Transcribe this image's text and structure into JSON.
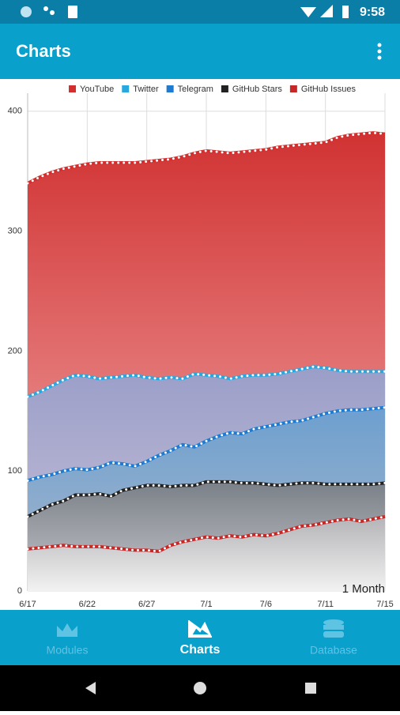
{
  "status_bar": {
    "time": "9:58"
  },
  "app_bar": {
    "title": "Charts"
  },
  "chart_data": {
    "type": "area",
    "categories": [
      "6/17",
      null,
      null,
      null,
      null,
      "6/22",
      null,
      null,
      null,
      null,
      "6/27",
      null,
      null,
      null,
      null,
      "7/1",
      null,
      null,
      null,
      null,
      "7/6",
      null,
      null,
      null,
      null,
      "7/11",
      null,
      null,
      null,
      null,
      "7/15"
    ],
    "series": [
      {
        "name": "YouTube",
        "color": "#d32f2f",
        "fill": [
          "#d13232",
          "#f3aeae"
        ],
        "values": [
          340,
          345,
          349,
          352,
          354,
          356,
          357,
          357,
          357,
          357,
          358,
          359,
          360,
          362,
          365,
          367,
          366,
          365,
          366,
          367,
          368,
          370,
          371,
          372,
          373,
          374,
          378,
          380,
          381,
          382,
          381
        ]
      },
      {
        "name": "Twitter",
        "color": "#29a8e0",
        "fill": [
          "#9a9ec8",
          "#c9c2d9"
        ],
        "values": [
          162,
          166,
          171,
          176,
          180,
          179,
          177,
          178,
          179,
          180,
          178,
          177,
          178,
          177,
          181,
          180,
          179,
          177,
          179,
          180,
          180,
          181,
          183,
          185,
          187,
          186,
          184,
          183,
          183,
          183,
          183
        ]
      },
      {
        "name": "Telegram",
        "color": "#1e7bd0",
        "fill": [
          "#6d9fcf",
          "#a9b8cb"
        ],
        "values": [
          92,
          95,
          97,
          100,
          102,
          101,
          103,
          107,
          106,
          104,
          108,
          113,
          117,
          122,
          120,
          125,
          129,
          132,
          131,
          135,
          137,
          139,
          141,
          142,
          145,
          148,
          150,
          151,
          151,
          152,
          153
        ]
      },
      {
        "name": "GitHub Stars",
        "color": "#222222",
        "fill": [
          "#7a8088",
          "#c8c8cc"
        ],
        "values": [
          62,
          67,
          72,
          75,
          80,
          80,
          81,
          79,
          84,
          86,
          88,
          88,
          87,
          88,
          88,
          91,
          91,
          91,
          90,
          90,
          89,
          88,
          89,
          90,
          90,
          89,
          89,
          89,
          89,
          89,
          90
        ]
      },
      {
        "name": "GitHub Issues",
        "color": "#c62828",
        "fill": [
          "#b4b4b8",
          "#f2f2f2"
        ],
        "values": [
          35,
          36,
          37,
          38,
          37,
          37,
          37,
          36,
          35,
          34,
          34,
          33,
          38,
          41,
          43,
          45,
          44,
          46,
          45,
          47,
          46,
          48,
          51,
          54,
          55,
          57,
          59,
          60,
          58,
          60,
          62
        ]
      }
    ],
    "ylim": [
      0,
      415
    ],
    "yticks": [
      0,
      100,
      200,
      300,
      400
    ],
    "grid": true,
    "legend": "top-right",
    "annotation": "1 Month"
  },
  "bottom_nav": {
    "items": [
      {
        "label": "Modules",
        "active": false
      },
      {
        "label": "Charts",
        "active": true
      },
      {
        "label": "Database",
        "active": false
      }
    ]
  }
}
